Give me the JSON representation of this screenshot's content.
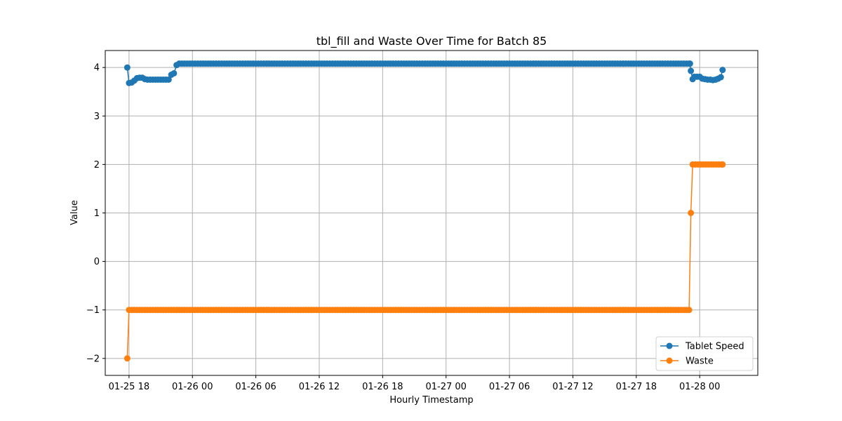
{
  "chart_data": {
    "type": "line",
    "title": "tbl_fill and Waste Over Time for Batch 85",
    "xlabel": "Hourly Timestamp",
    "ylabel": "Value",
    "xlim": [
      "2025-01-25 15:45",
      "2025-01-28 05:30"
    ],
    "ylim": [
      -2.35,
      4.35
    ],
    "x_ticks": [
      {
        "t": "2025-01-25 18:00",
        "label": "01-25 18"
      },
      {
        "t": "2025-01-26 00:00",
        "label": "01-26 00"
      },
      {
        "t": "2025-01-26 06:00",
        "label": "01-26 06"
      },
      {
        "t": "2025-01-26 12:00",
        "label": "01-26 12"
      },
      {
        "t": "2025-01-26 18:00",
        "label": "01-26 18"
      },
      {
        "t": "2025-01-27 00:00",
        "label": "01-27 00"
      },
      {
        "t": "2025-01-27 06:00",
        "label": "01-27 06"
      },
      {
        "t": "2025-01-27 12:00",
        "label": "01-27 12"
      },
      {
        "t": "2025-01-27 18:00",
        "label": "01-27 18"
      },
      {
        "t": "2025-01-28 00:00",
        "label": "01-28 00"
      }
    ],
    "y_ticks": [
      -2,
      -1,
      0,
      1,
      2,
      3,
      4
    ],
    "grid": true,
    "legend_position": "lower-right",
    "series": [
      {
        "name": "Tablet Speed",
        "color": "#1f77b4",
        "marker": "circle",
        "points": [
          [
            "2025-01-25 17:50",
            4.0
          ],
          [
            "2025-01-25 18:00",
            3.68
          ],
          [
            "2025-01-25 18:15",
            3.69
          ],
          [
            "2025-01-25 18:30",
            3.73
          ],
          [
            "2025-01-25 18:45",
            3.78
          ],
          [
            "2025-01-25 19:00",
            3.79
          ],
          [
            "2025-01-25 19:15",
            3.79
          ],
          [
            "2025-01-25 19:30",
            3.76
          ],
          [
            "2025-01-25 19:45",
            3.75
          ],
          [
            "2025-01-25 20:00",
            3.75
          ],
          [
            "2025-01-25 20:15",
            3.75
          ],
          [
            "2025-01-25 20:30",
            3.75
          ],
          [
            "2025-01-25 20:45",
            3.75
          ],
          [
            "2025-01-25 21:00",
            3.75
          ],
          [
            "2025-01-25 21:15",
            3.75
          ],
          [
            "2025-01-25 21:30",
            3.75
          ],
          [
            "2025-01-25 21:45",
            3.75
          ],
          [
            "2025-01-25 22:00",
            3.85
          ],
          [
            "2025-01-25 22:15",
            3.88
          ],
          [
            "2025-01-25 22:30",
            4.05
          ],
          [
            "2025-01-25 22:45",
            4.08
          ],
          [
            "2025-01-25 23:00",
            4.08
          ],
          [
            "2025-01-27 23:05",
            4.08
          ],
          [
            "2025-01-27 23:10",
            3.93
          ],
          [
            "2025-01-27 23:20",
            3.76
          ],
          [
            "2025-01-27 23:30",
            3.81
          ],
          [
            "2025-01-27 23:45",
            3.81
          ],
          [
            "2025-01-28 00:00",
            3.81
          ],
          [
            "2025-01-28 00:15",
            3.77
          ],
          [
            "2025-01-28 00:30",
            3.76
          ],
          [
            "2025-01-28 00:45",
            3.75
          ],
          [
            "2025-01-28 01:00",
            3.75
          ],
          [
            "2025-01-28 01:15",
            3.74
          ],
          [
            "2025-01-28 01:30",
            3.75
          ],
          [
            "2025-01-28 01:45",
            3.77
          ],
          [
            "2025-01-28 02:00",
            3.8
          ],
          [
            "2025-01-28 02:10",
            3.95
          ]
        ]
      },
      {
        "name": "Waste",
        "color": "#ff7f0e",
        "marker": "circle",
        "points": [
          [
            "2025-01-25 17:50",
            -2
          ],
          [
            "2025-01-25 18:00",
            -1
          ],
          [
            "2025-01-27 23:00",
            -1
          ],
          [
            "2025-01-27 23:10",
            1
          ],
          [
            "2025-01-27 23:20",
            2
          ],
          [
            "2025-01-28 02:10",
            2
          ]
        ]
      }
    ]
  }
}
